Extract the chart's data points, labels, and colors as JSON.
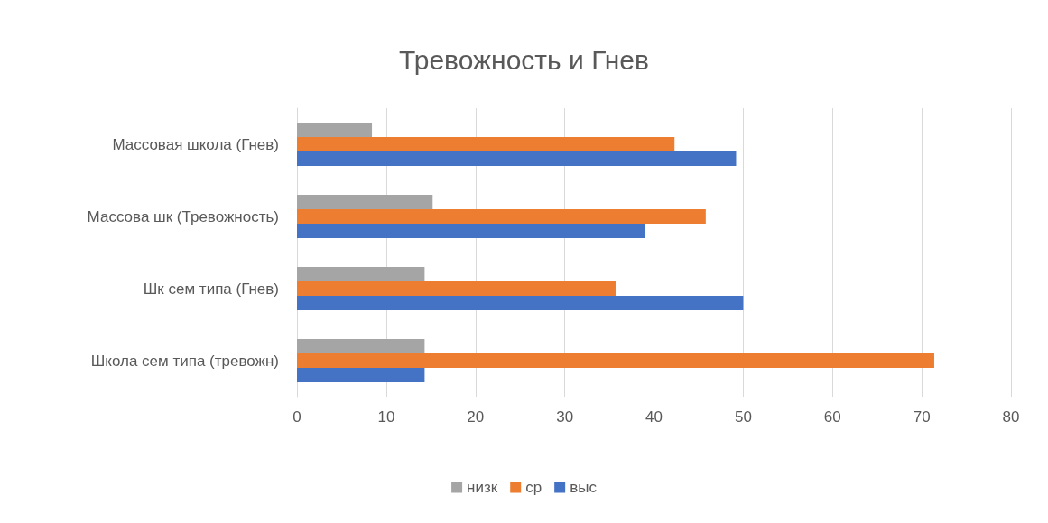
{
  "chart_data": {
    "type": "bar",
    "orientation": "horizontal",
    "title": "Тревожность и Гнев",
    "categories": [
      "Массовая школа (Гнев)",
      "Массова шк (Тревожность)",
      "Шк сем типа (Гнев)",
      "Школа сем типа (тревожн)"
    ],
    "series": [
      {
        "name": "низк",
        "color": "#a5a5a5",
        "values": [
          8.4,
          15.2,
          14.3,
          14.3
        ]
      },
      {
        "name": "ср",
        "color": "#ed7d31",
        "values": [
          42.3,
          45.8,
          35.7,
          71.4
        ]
      },
      {
        "name": "выс",
        "color": "#4472c4",
        "values": [
          49.2,
          39,
          50,
          14.3
        ]
      }
    ],
    "xlim": [
      0,
      80
    ],
    "xticks": [
      0,
      10,
      20,
      30,
      40,
      50,
      60,
      70,
      80
    ],
    "grid": "x",
    "legend": "bottom"
  }
}
